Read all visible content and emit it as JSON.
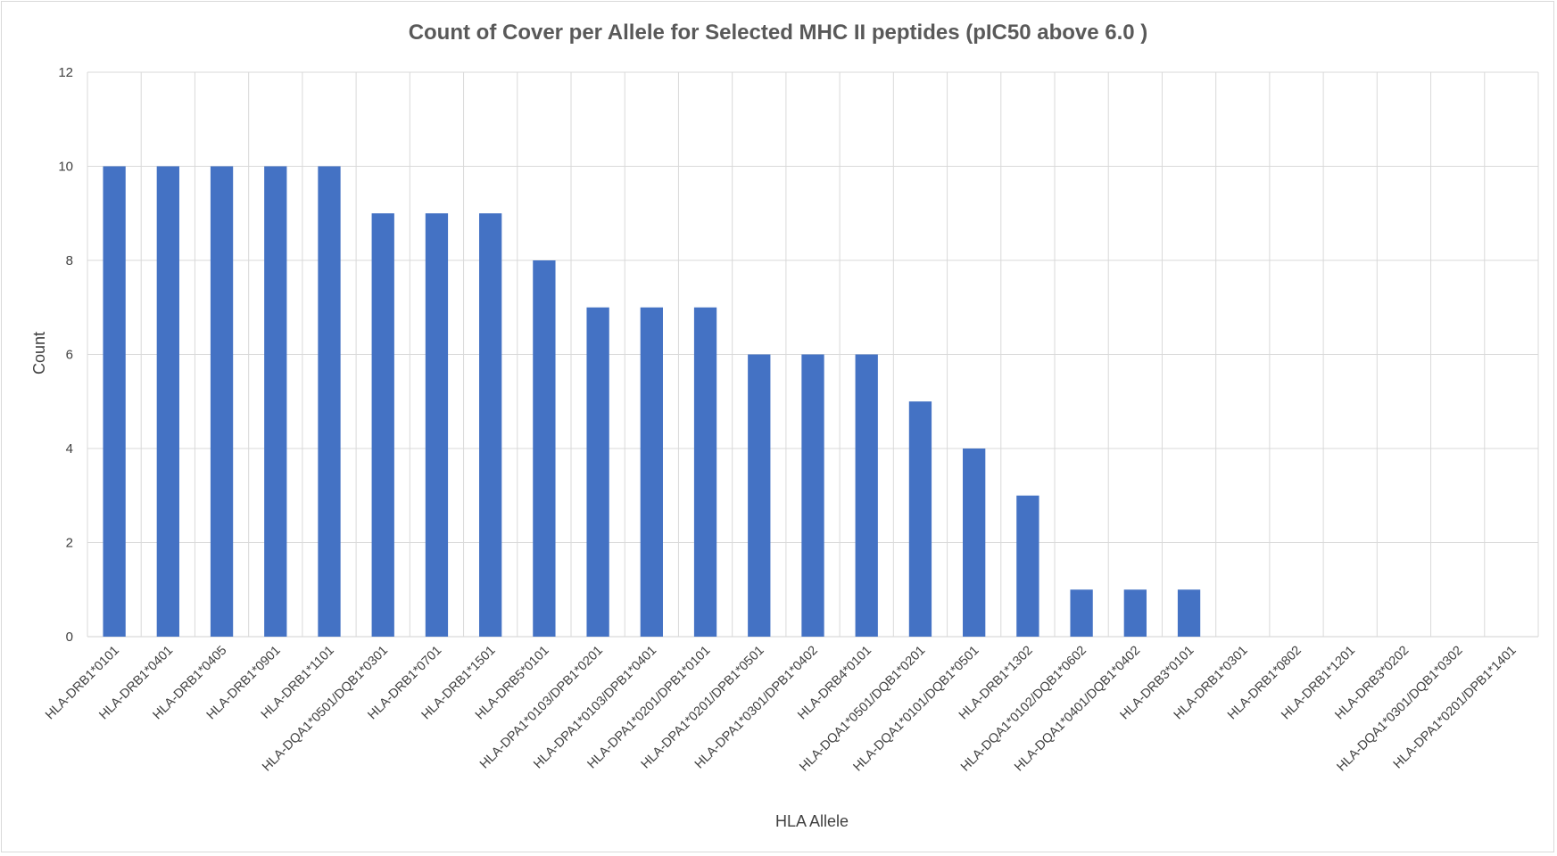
{
  "chart_data": {
    "type": "bar",
    "title": "Count of Cover per Allele for Selected MHC II peptides (pIC50 above 6.0 )",
    "xlabel": "HLA Allele",
    "ylabel": "Count",
    "ylim": [
      0,
      12
    ],
    "yticks": [
      0,
      2,
      4,
      6,
      8,
      10,
      12
    ],
    "grid": "on",
    "legend": "none",
    "bar_color": "#4472C4",
    "categories": [
      "HLA-DRB1*0101",
      "HLA-DRB1*0401",
      "HLA-DRB1*0405",
      "HLA-DRB1*0901",
      "HLA-DRB1*1101",
      "HLA-DQA1*0501/DQB1*0301",
      "HLA-DRB1*0701",
      "HLA-DRB1*1501",
      "HLA-DRB5*0101",
      "HLA-DPA1*0103/DPB1*0201",
      "HLA-DPA1*0103/DPB1*0401",
      "HLA-DPA1*0201/DPB1*0101",
      "HLA-DPA1*0201/DPB1*0501",
      "HLA-DPA1*0301/DPB1*0402",
      "HLA-DRB4*0101",
      "HLA-DQA1*0501/DQB1*0201",
      "HLA-DQA1*0101/DQB1*0501",
      "HLA-DRB1*1302",
      "HLA-DQA1*0102/DQB1*0602",
      "HLA-DQA1*0401/DQB1*0402",
      "HLA-DRB3*0101",
      "HLA-DRB1*0301",
      "HLA-DRB1*0802",
      "HLA-DRB1*1201",
      "HLA-DRB3*0202",
      "HLA-DQA1*0301/DQB1*0302",
      "HLA-DPA1*0201/DPB1*1401"
    ],
    "values": [
      10,
      10,
      10,
      10,
      10,
      9,
      9,
      9,
      8,
      7,
      7,
      7,
      6,
      6,
      6,
      5,
      4,
      3,
      1,
      1,
      1,
      0,
      0,
      0,
      0,
      0,
      0
    ]
  }
}
